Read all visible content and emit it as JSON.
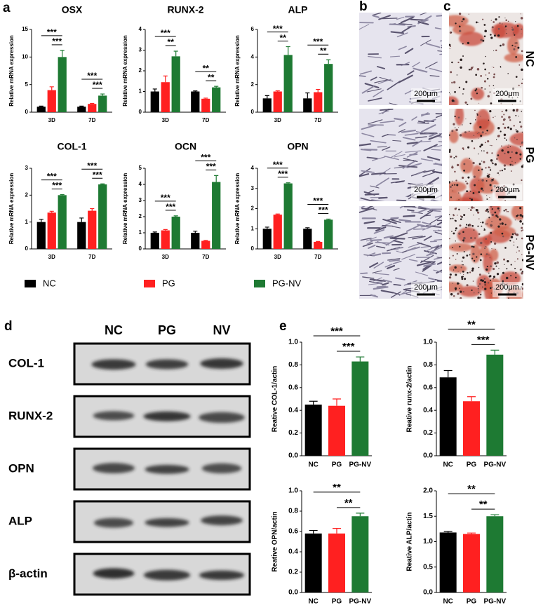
{
  "panel_labels": [
    "a",
    "b",
    "c",
    "d",
    "e"
  ],
  "micrographs": {
    "rows": [
      "NC",
      "PG",
      "PG-NV"
    ],
    "scale_bars": [
      "200μm",
      "200μm",
      "200μm",
      "200μm",
      "200μm",
      "200μm"
    ]
  },
  "western_blot": {
    "columns": [
      "NC",
      "PG",
      "NV"
    ],
    "rows": [
      "COL-1",
      "RUNX-2",
      "OPN",
      "ALP",
      "β-actin"
    ]
  },
  "chart_data": [
    {
      "type": "bar",
      "title": "OSX",
      "y_label": "Relative mRNA expression",
      "categories": [
        "3D",
        "7D"
      ],
      "ylim": [
        0,
        15
      ],
      "yticks": [
        0,
        5,
        10,
        15
      ],
      "series": [
        {
          "name": "NC",
          "color": "#000000",
          "values": [
            1,
            1
          ],
          "errors": [
            0.1,
            0.1
          ]
        },
        {
          "name": "PG",
          "color": "#ff2020",
          "values": [
            4,
            1.5
          ],
          "errors": [
            0.6,
            0.1
          ]
        },
        {
          "name": "PG-NV",
          "color": "#1e7a33",
          "values": [
            10,
            3
          ],
          "errors": [
            1.2,
            0.3
          ]
        }
      ],
      "annotations": [
        {
          "text": "***",
          "category": "3D",
          "between": [
            "NC",
            "PG-NV"
          ]
        },
        {
          "text": "***",
          "category": "3D",
          "between": [
            "PG",
            "PG-NV"
          ]
        },
        {
          "text": "***",
          "category": "7D",
          "between": [
            "NC",
            "PG-NV"
          ]
        },
        {
          "text": "***",
          "category": "7D",
          "between": [
            "PG",
            "PG-NV"
          ]
        }
      ]
    },
    {
      "type": "bar",
      "title": "RUNX-2",
      "y_label": "Relative mRNA expression",
      "categories": [
        "3D",
        "7D"
      ],
      "ylim": [
        0,
        4
      ],
      "yticks": [
        0,
        1,
        2,
        3,
        4
      ],
      "series": [
        {
          "name": "NC",
          "color": "#000000",
          "values": [
            1.0,
            1.0
          ],
          "errors": [
            0.12,
            0.03
          ]
        },
        {
          "name": "PG",
          "color": "#ff2020",
          "values": [
            1.45,
            0.65
          ],
          "errors": [
            0.3,
            0.03
          ]
        },
        {
          "name": "PG-NV",
          "color": "#1e7a33",
          "values": [
            2.7,
            1.2
          ],
          "errors": [
            0.25,
            0.05
          ]
        }
      ],
      "annotations": [
        {
          "text": "***",
          "category": "3D",
          "between": [
            "NC",
            "PG-NV"
          ]
        },
        {
          "text": "**",
          "category": "3D",
          "between": [
            "PG",
            "PG-NV"
          ]
        },
        {
          "text": "**",
          "category": "7D",
          "between": [
            "NC",
            "PG-NV"
          ]
        },
        {
          "text": "**",
          "category": "7D",
          "between": [
            "PG",
            "PG-NV"
          ]
        }
      ]
    },
    {
      "type": "bar",
      "title": "ALP",
      "y_label": "Relative mRNA expression",
      "categories": [
        "3D",
        "7D"
      ],
      "ylim": [
        0,
        6
      ],
      "yticks": [
        0,
        2,
        4,
        6
      ],
      "series": [
        {
          "name": "NC",
          "color": "#000000",
          "values": [
            1.0,
            1.0
          ],
          "errors": [
            0.2,
            0.4
          ]
        },
        {
          "name": "PG",
          "color": "#ff2020",
          "values": [
            1.5,
            1.45
          ],
          "errors": [
            0.05,
            0.2
          ]
        },
        {
          "name": "PG-NV",
          "color": "#1e7a33",
          "values": [
            4.15,
            3.5
          ],
          "errors": [
            0.6,
            0.3
          ]
        }
      ],
      "annotations": [
        {
          "text": "***",
          "category": "3D",
          "between": [
            "NC",
            "PG-NV"
          ]
        },
        {
          "text": "**",
          "category": "3D",
          "between": [
            "PG",
            "PG-NV"
          ]
        },
        {
          "text": "***",
          "category": "7D",
          "between": [
            "NC",
            "PG-NV"
          ]
        },
        {
          "text": "**",
          "category": "7D",
          "between": [
            "PG",
            "PG-NV"
          ]
        }
      ]
    },
    {
      "type": "bar",
      "title": "COL-1",
      "y_label": "Relative mRNA expression",
      "categories": [
        "3D",
        "7D"
      ],
      "ylim": [
        0,
        3
      ],
      "yticks": [
        0,
        1,
        2,
        3
      ],
      "series": [
        {
          "name": "NC",
          "color": "#000000",
          "values": [
            1.0,
            1.0
          ],
          "errors": [
            0.1,
            0.15
          ]
        },
        {
          "name": "PG",
          "color": "#ff2020",
          "values": [
            1.35,
            1.42
          ],
          "errors": [
            0.05,
            0.08
          ]
        },
        {
          "name": "PG-NV",
          "color": "#1e7a33",
          "values": [
            2.0,
            2.4
          ],
          "errors": [
            0.02,
            0.02
          ]
        }
      ],
      "annotations": [
        {
          "text": "***",
          "category": "3D",
          "between": [
            "NC",
            "PG-NV"
          ]
        },
        {
          "text": "***",
          "category": "3D",
          "between": [
            "PG",
            "PG-NV"
          ]
        },
        {
          "text": "***",
          "category": "7D",
          "between": [
            "NC",
            "PG-NV"
          ]
        },
        {
          "text": "***",
          "category": "7D",
          "between": [
            "PG",
            "PG-NV"
          ]
        }
      ]
    },
    {
      "type": "bar",
      "title": "OCN",
      "y_label": "Relative mRNA expression",
      "categories": [
        "3D",
        "7D"
      ],
      "ylim": [
        0,
        5
      ],
      "yticks": [
        0,
        1,
        2,
        3,
        4,
        5
      ],
      "series": [
        {
          "name": "NC",
          "color": "#000000",
          "values": [
            1.0,
            1.0
          ],
          "errors": [
            0.05,
            0.1
          ]
        },
        {
          "name": "PG",
          "color": "#ff2020",
          "values": [
            1.15,
            0.5
          ],
          "errors": [
            0.05,
            0.03
          ]
        },
        {
          "name": "PG-NV",
          "color": "#1e7a33",
          "values": [
            2.0,
            4.15
          ],
          "errors": [
            0.05,
            0.4
          ]
        }
      ],
      "annotations": [
        {
          "text": "***",
          "category": "3D",
          "between": [
            "NC",
            "PG-NV"
          ]
        },
        {
          "text": "***",
          "category": "3D",
          "between": [
            "PG",
            "PG-NV"
          ]
        },
        {
          "text": "***",
          "category": "7D",
          "between": [
            "NC",
            "PG-NV"
          ]
        },
        {
          "text": "***",
          "category": "7D",
          "between": [
            "PG",
            "PG-NV"
          ]
        }
      ]
    },
    {
      "type": "bar",
      "title": "OPN",
      "y_label": "Relative mRNA expression",
      "categories": [
        "3D",
        "7D"
      ],
      "ylim": [
        0,
        4
      ],
      "yticks": [
        0,
        1,
        2,
        3,
        4
      ],
      "series": [
        {
          "name": "NC",
          "color": "#000000",
          "values": [
            1.0,
            1.0
          ],
          "errors": [
            0.08,
            0.05
          ]
        },
        {
          "name": "PG",
          "color": "#ff2020",
          "values": [
            1.7,
            0.35
          ],
          "errors": [
            0.03,
            0.02
          ]
        },
        {
          "name": "PG-NV",
          "color": "#1e7a33",
          "values": [
            3.25,
            1.45
          ],
          "errors": [
            0.03,
            0.03
          ]
        }
      ],
      "annotations": [
        {
          "text": "***",
          "category": "3D",
          "between": [
            "NC",
            "PG-NV"
          ]
        },
        {
          "text": "***",
          "category": "3D",
          "between": [
            "PG",
            "PG-NV"
          ]
        },
        {
          "text": "***",
          "category": "7D",
          "between": [
            "NC",
            "PG-NV"
          ]
        },
        {
          "text": "***",
          "category": "7D",
          "between": [
            "PG",
            "PG-NV"
          ]
        }
      ]
    },
    {
      "type": "bar",
      "y_label": "Reative COL-1/actin",
      "categories": [
        "NC",
        "PG",
        "PG-NV"
      ],
      "values": [
        0.45,
        0.44,
        0.83
      ],
      "errors": [
        0.03,
        0.06,
        0.04
      ],
      "colors": [
        "#000000",
        "#ff2020",
        "#1e7a33"
      ],
      "ylim": [
        0,
        1.0
      ],
      "yticks": [
        {
          "value": 0,
          "label": "0.0"
        },
        0.2,
        0.4,
        0.6,
        0.8,
        {
          "value": 1.0,
          "label": "1.0"
        }
      ],
      "annotations": [
        {
          "text": "***",
          "between": [
            "NC",
            "PG-NV"
          ]
        },
        {
          "text": "***",
          "between": [
            "PG",
            "PG-NV"
          ]
        }
      ]
    },
    {
      "type": "bar",
      "y_label": "Reative runx-2/actin",
      "categories": [
        "NC",
        "PG",
        "PG-NV"
      ],
      "values": [
        0.69,
        0.48,
        0.89
      ],
      "errors": [
        0.06,
        0.04,
        0.04
      ],
      "colors": [
        "#000000",
        "#ff2020",
        "#1e7a33"
      ],
      "ylim": [
        0,
        1.0
      ],
      "yticks": [
        {
          "value": 0,
          "label": "0.0"
        },
        0.2,
        0.4,
        0.6,
        0.8,
        {
          "value": 1.0,
          "label": "1.0"
        }
      ],
      "annotations": [
        {
          "text": "**",
          "between": [
            "NC",
            "PG-NV"
          ]
        },
        {
          "text": "***",
          "between": [
            "PG",
            "PG-NV"
          ]
        }
      ]
    },
    {
      "type": "bar",
      "y_label": "Reative OPN/actin",
      "categories": [
        "NC",
        "PG",
        "PG-NV"
      ],
      "values": [
        0.58,
        0.58,
        0.75
      ],
      "errors": [
        0.03,
        0.05,
        0.03
      ],
      "colors": [
        "#000000",
        "#ff2020",
        "#1e7a33"
      ],
      "ylim": [
        0,
        1.0
      ],
      "yticks": [
        {
          "value": 0,
          "label": "0.0"
        },
        0.2,
        0.4,
        0.6,
        0.8,
        {
          "value": 1.0,
          "label": "1.0"
        }
      ],
      "annotations": [
        {
          "text": "**",
          "between": [
            "NC",
            "PG-NV"
          ]
        },
        {
          "text": "**",
          "between": [
            "PG",
            "PG-NV"
          ]
        }
      ]
    },
    {
      "type": "bar",
      "y_label": "Reative ALP/actin",
      "categories": [
        "NC",
        "PG",
        "PG-NV"
      ],
      "values": [
        1.18,
        1.15,
        1.5
      ],
      "errors": [
        0.02,
        0.02,
        0.03
      ],
      "colors": [
        "#000000",
        "#ff2020",
        "#1e7a33"
      ],
      "ylim": [
        0,
        2.0
      ],
      "yticks": [
        {
          "value": 0,
          "label": "0.0"
        },
        0.5,
        {
          "value": 1.0,
          "label": "1.0"
        },
        1.5,
        {
          "value": 2.0,
          "label": "2.0"
        }
      ],
      "annotations": [
        {
          "text": "**",
          "between": [
            "NC",
            "PG-NV"
          ]
        },
        {
          "text": "**",
          "between": [
            "PG",
            "PG-NV"
          ]
        }
      ]
    }
  ]
}
